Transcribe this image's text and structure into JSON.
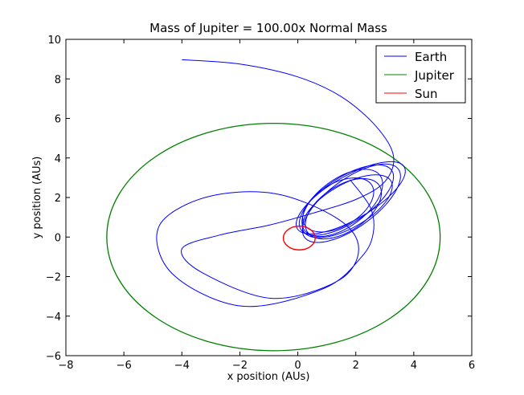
{
  "chart_data": {
    "type": "line",
    "title": "Mass of Jupiter = 100.00x Normal Mass",
    "xlabel": "x position (AUs)",
    "ylabel": "y position (AUs)",
    "xlim": [
      -8,
      6
    ],
    "ylim": [
      -6,
      10
    ],
    "xticks": [
      -8,
      -6,
      -4,
      -2,
      0,
      2,
      4,
      6
    ],
    "yticks": [
      -6,
      -4,
      -2,
      0,
      2,
      4,
      6,
      8,
      10
    ],
    "xtick_labels": [
      "−8",
      "−6",
      "−4",
      "−2",
      "0",
      "2",
      "4",
      "6"
    ],
    "ytick_labels": [
      "−6",
      "−4",
      "−2",
      "0",
      "2",
      "4",
      "6",
      "8",
      "10"
    ],
    "grid": false,
    "legend_position": "top-right",
    "series": [
      {
        "name": "Earth",
        "color": "#0000ff",
        "start": [
          -4.0,
          8.97
        ],
        "approx_track": [
          [
            -4.0,
            8.97
          ],
          [
            -2.0,
            8.75
          ],
          [
            0.0,
            8.1
          ],
          [
            1.5,
            7.1
          ],
          [
            2.7,
            5.6
          ],
          [
            3.3,
            4.1
          ],
          [
            3.0,
            2.8
          ],
          [
            2.0,
            1.9
          ],
          [
            0.5,
            1.2
          ],
          [
            -1.0,
            0.6
          ],
          [
            -2.7,
            0.1
          ],
          [
            -4.0,
            -0.6
          ],
          [
            -3.3,
            -1.8
          ],
          [
            -0.9,
            -3.1
          ],
          [
            1.4,
            -2.2
          ],
          [
            2.1,
            -0.6
          ],
          [
            1.4,
            0.9
          ],
          [
            -0.8,
            2.2
          ],
          [
            -3.2,
            2.0
          ],
          [
            -4.8,
            0.5
          ],
          [
            -4.3,
            -1.9
          ],
          [
            -1.9,
            -3.5
          ],
          [
            0.9,
            -2.6
          ],
          [
            2.2,
            -1.0
          ],
          [
            2.6,
            0.2
          ],
          [
            2.5,
            1.5
          ],
          [
            1.8,
            2.9
          ]
        ],
        "loop_cluster": {
          "center": [
            1.65,
            1.7
          ],
          "x_range": [
            -0.35,
            4.0
          ],
          "y_range": [
            -1.0,
            4.1
          ],
          "loop_count": 7
        }
      },
      {
        "name": "Jupiter",
        "color": "#008000",
        "orbit": {
          "center": [
            -0.84,
            0.0
          ],
          "x_range": [
            -6.6,
            4.9
          ],
          "y_range": [
            -5.75,
            5.75
          ]
        }
      },
      {
        "name": "Sun",
        "color": "#ff0000",
        "orbit": {
          "center": [
            0.05,
            -0.05
          ],
          "x_range": [
            -0.5,
            0.6
          ],
          "y_range": [
            -0.65,
            0.55
          ]
        }
      }
    ]
  }
}
